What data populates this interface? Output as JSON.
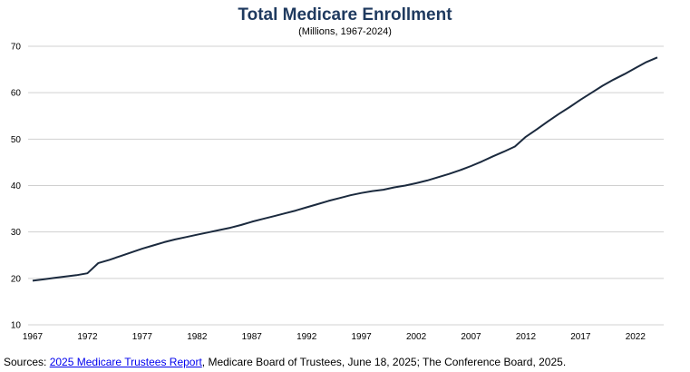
{
  "chart_data": {
    "type": "line",
    "title": "Total Medicare Enrollment",
    "subtitle": "(Millions, 1967-2024)",
    "xlabel": "",
    "ylabel": "",
    "xlim": [
      1967,
      2024
    ],
    "ylim": [
      10,
      70
    ],
    "yticks": [
      10,
      20,
      30,
      40,
      50,
      60,
      70
    ],
    "xticks": [
      1967,
      1972,
      1977,
      1982,
      1987,
      1992,
      1997,
      2002,
      2007,
      2012,
      2017,
      2022
    ],
    "grid": "horizontal",
    "line_color": "#1b2a3e",
    "series": [
      {
        "x": [
          1967,
          1968,
          1969,
          1970,
          1971,
          1972,
          1973,
          1974,
          1975,
          1976,
          1977,
          1978,
          1979,
          1980,
          1981,
          1982,
          1983,
          1984,
          1985,
          1986,
          1987,
          1988,
          1989,
          1990,
          1991,
          1992,
          1993,
          1994,
          1995,
          1996,
          1997,
          1998,
          1999,
          2000,
          2001,
          2002,
          2003,
          2004,
          2005,
          2006,
          2007,
          2008,
          2009,
          2010,
          2011,
          2012,
          2013,
          2014,
          2015,
          2016,
          2017,
          2018,
          2019,
          2020,
          2021,
          2022,
          2023,
          2024
        ],
        "values": [
          19.5,
          19.8,
          20.1,
          20.4,
          20.7,
          21.1,
          23.3,
          24.0,
          24.8,
          25.6,
          26.4,
          27.1,
          27.8,
          28.4,
          28.9,
          29.4,
          29.9,
          30.4,
          30.9,
          31.5,
          32.2,
          32.8,
          33.4,
          34.0,
          34.6,
          35.3,
          36.0,
          36.7,
          37.3,
          37.9,
          38.4,
          38.8,
          39.1,
          39.6,
          40.0,
          40.5,
          41.1,
          41.8,
          42.5,
          43.3,
          44.2,
          45.2,
          46.3,
          47.3,
          48.4,
          50.5,
          52.1,
          53.8,
          55.4,
          56.9,
          58.5,
          60.0,
          61.5,
          62.8,
          64.0,
          65.3,
          66.6,
          67.6
        ]
      }
    ]
  },
  "source": {
    "prefix": "Sources: ",
    "link_text": "2025 Medicare Trustees Report",
    "suffix": ", Medicare Board of Trustees, June 18, 2025; The Conference Board, 2025."
  }
}
